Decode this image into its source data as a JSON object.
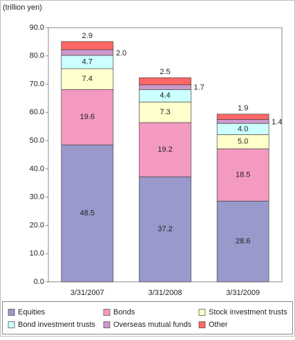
{
  "chart_data": {
    "type": "stacked_bar",
    "y_axis_label": "(trillion yen)",
    "categories": [
      "3/31/2007",
      "3/31/2008",
      "3/31/2009"
    ],
    "series": [
      {
        "name": "Equities",
        "color": "#9999cc",
        "values": [
          48.5,
          37.2,
          28.6
        ]
      },
      {
        "name": "Bonds",
        "color": "#f49ac1",
        "values": [
          19.6,
          19.2,
          18.5
        ]
      },
      {
        "name": "Stock investment trusts",
        "color": "#ffffcc",
        "values": [
          7.4,
          7.3,
          5.0
        ],
        "value_labels": [
          "7.4",
          "7.3",
          "5.0"
        ]
      },
      {
        "name": "Bond investment trusts",
        "color": "#ccffff",
        "values": [
          4.7,
          4.4,
          4.0
        ],
        "value_labels": [
          "4.7",
          "4.4",
          "4.0"
        ]
      },
      {
        "name": "Overseas mutual funds",
        "color": "#cc99cc",
        "values": [
          2.0,
          1.7,
          1.4
        ],
        "value_labels": [
          "2.0",
          "1.7",
          "1.4"
        ]
      },
      {
        "name": "Other",
        "color": "#ff6666",
        "values": [
          2.9,
          2.5,
          1.9
        ]
      }
    ],
    "ylim": [
      0,
      90
    ],
    "yticks": [
      {
        "value": 0,
        "label": "0.0"
      },
      {
        "value": 10,
        "label": "10.0"
      },
      {
        "value": 20,
        "label": "20.0"
      },
      {
        "value": 30,
        "label": "30.0"
      },
      {
        "value": 40,
        "label": "40.0"
      },
      {
        "value": 50,
        "label": "50.0"
      },
      {
        "value": 60,
        "label": "60.0"
      },
      {
        "value": 70,
        "label": "70.0"
      },
      {
        "value": 80,
        "label": "80.0"
      },
      {
        "value": 90,
        "label": "90.0"
      }
    ],
    "grid": false,
    "legend": "bottom"
  }
}
